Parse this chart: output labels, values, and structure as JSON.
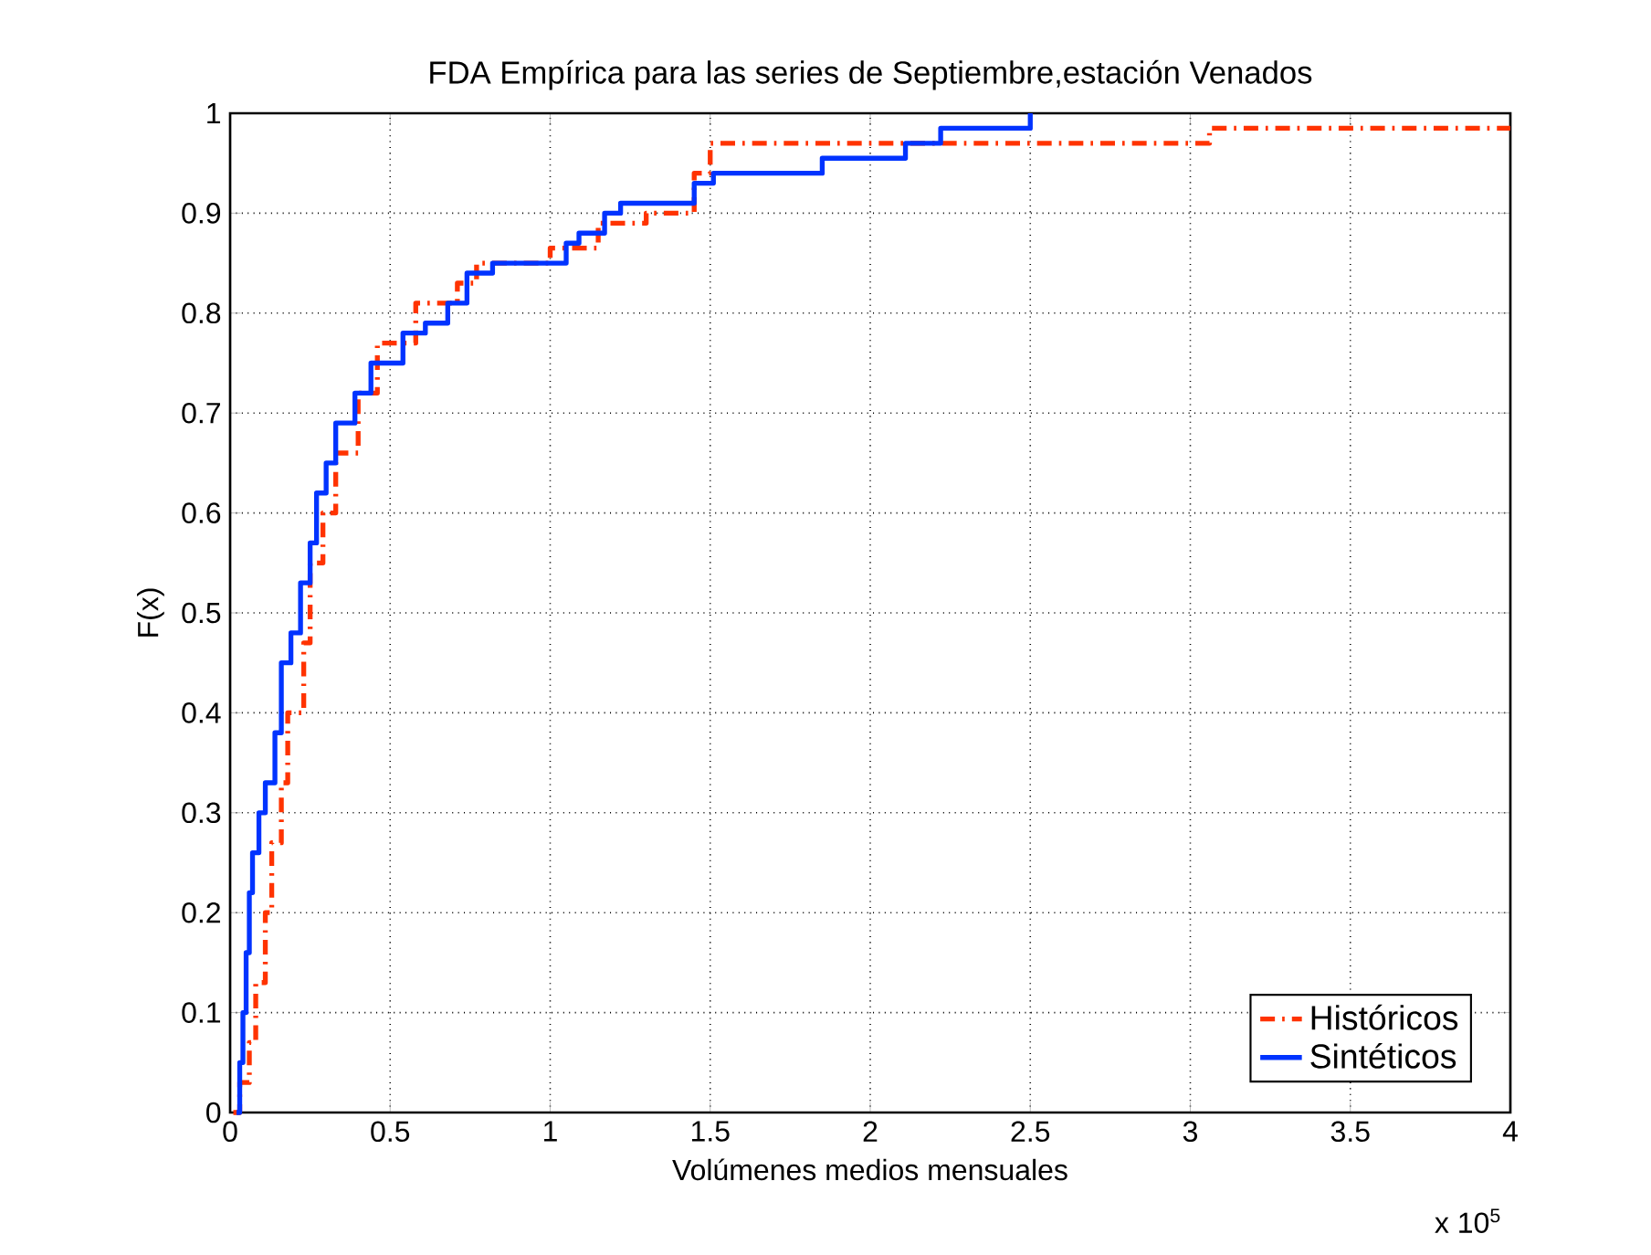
{
  "chart_data": {
    "type": "step",
    "title": "FDA Empírica  para las series de Septiembre,estación Venados",
    "xlabel": "Volúmenes medios mensuales",
    "ylabel": "F(x)",
    "annotations": [
      "x 10$^{5}$"
    ],
    "xlim": [
      0,
      4
    ],
    "ylim": [
      0,
      1
    ],
    "xticks": [
      0,
      0.5,
      1,
      1.5,
      2,
      2.5,
      3,
      3.5,
      4
    ],
    "yticks": [
      0,
      0.1,
      0.2,
      0.3,
      0.4,
      0.5,
      0.6,
      0.7,
      0.8,
      0.9,
      1
    ],
    "grid": true,
    "legend": "bottom right",
    "series": [
      {
        "name": "Históricos",
        "color": "#ff3300",
        "line_style": "dashed",
        "x": [
          0.01,
          0.03,
          0.06,
          0.08,
          0.11,
          0.13,
          0.16,
          0.18,
          0.23,
          0.25,
          0.29,
          0.33,
          0.4,
          0.46,
          0.58,
          0.71,
          0.77,
          1.0,
          1.15,
          1.3,
          1.45,
          1.5,
          3.06,
          4
        ],
        "values": [
          0,
          0.03,
          0.07,
          0.13,
          0.2,
          0.27,
          0.33,
          0.4,
          0.47,
          0.55,
          0.6,
          0.66,
          0.72,
          0.77,
          0.81,
          0.83,
          0.85,
          0.865,
          0.89,
          0.9,
          0.94,
          0.97,
          0.985,
          0.985
        ]
      },
      {
        "name": "Sintéticos",
        "color": "#0033ff",
        "line_style": "solid",
        "x": [
          0.02,
          0.03,
          0.04,
          0.05,
          0.06,
          0.07,
          0.09,
          0.11,
          0.14,
          0.16,
          0.19,
          0.22,
          0.25,
          0.27,
          0.3,
          0.33,
          0.39,
          0.44,
          0.54,
          0.61,
          0.68,
          0.74,
          0.82,
          1.05,
          1.09,
          1.17,
          1.22,
          1.45,
          1.51,
          1.85,
          2.11,
          2.22,
          2.5
        ],
        "values": [
          0,
          0.05,
          0.1,
          0.16,
          0.22,
          0.26,
          0.3,
          0.33,
          0.38,
          0.45,
          0.48,
          0.53,
          0.57,
          0.62,
          0.65,
          0.69,
          0.72,
          0.75,
          0.78,
          0.79,
          0.81,
          0.84,
          0.85,
          0.87,
          0.88,
          0.9,
          0.91,
          0.93,
          0.94,
          0.955,
          0.97,
          0.985,
          1.0
        ]
      }
    ]
  }
}
